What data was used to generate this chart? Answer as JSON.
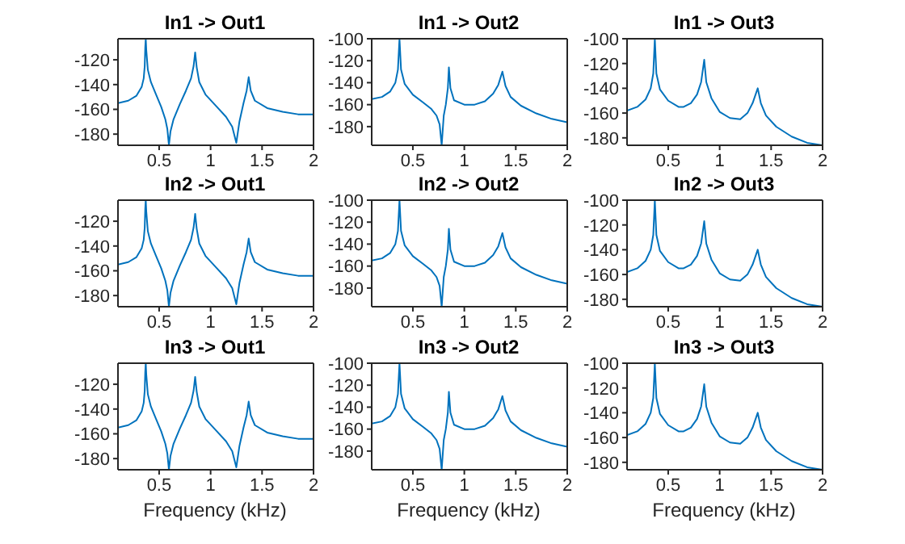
{
  "chart_data": [
    {
      "type": "line",
      "title": "In1 -> Out1",
      "color": "#0072bd",
      "x": [
        0.1,
        0.2,
        0.28,
        0.33,
        0.35,
        0.36,
        0.365,
        0.37,
        0.375,
        0.39,
        0.42,
        0.47,
        0.52,
        0.56,
        0.58,
        0.595,
        0.61,
        0.64,
        0.7,
        0.76,
        0.81,
        0.835,
        0.85,
        0.865,
        0.89,
        0.95,
        1.05,
        1.15,
        1.21,
        1.25,
        1.28,
        1.32,
        1.35,
        1.37,
        1.39,
        1.43,
        1.55,
        1.7,
        1.85,
        2
      ],
      "values": [
        -155,
        -153,
        -149,
        -142,
        -135,
        -125,
        -110,
        -103,
        -112,
        -128,
        -138,
        -148,
        -158,
        -168,
        -176,
        -189,
        -178,
        -168,
        -156,
        -145,
        -135,
        -125,
        -114,
        -126,
        -138,
        -148,
        -157,
        -166,
        -174,
        -187,
        -170,
        -155,
        -145,
        -134,
        -145,
        -153,
        -159,
        -162,
        -164,
        -164
      ],
      "xlim": [
        0.1,
        2
      ],
      "xticks": [
        0.5,
        1,
        1.5,
        2
      ],
      "ylim": [
        -189,
        -103
      ],
      "yticks": [
        -180,
        -160,
        -140,
        -120
      ]
    },
    {
      "type": "line",
      "title": "In1 -> Out2",
      "color": "#0072bd",
      "x": [
        0.1,
        0.2,
        0.28,
        0.33,
        0.355,
        0.37,
        0.385,
        0.42,
        0.5,
        0.6,
        0.68,
        0.73,
        0.76,
        0.78,
        0.8,
        0.82,
        0.84,
        0.85,
        0.865,
        0.9,
        1.0,
        1.1,
        1.2,
        1.28,
        1.33,
        1.37,
        1.4,
        1.45,
        1.55,
        1.7,
        1.85,
        2
      ],
      "values": [
        -155,
        -153,
        -148,
        -140,
        -128,
        -100,
        -128,
        -141,
        -151,
        -158,
        -164,
        -170,
        -178,
        -197,
        -170,
        -160,
        -145,
        -126,
        -145,
        -156,
        -160,
        -160,
        -157,
        -150,
        -142,
        -130,
        -143,
        -153,
        -161,
        -168,
        -173,
        -176
      ],
      "xlim": [
        0.1,
        2
      ],
      "xticks": [
        0.5,
        1,
        1.5,
        2
      ],
      "ylim": [
        -197,
        -100
      ],
      "yticks": [
        -180,
        -160,
        -140,
        -120,
        -100
      ]
    },
    {
      "type": "line",
      "title": "In1 -> Out3",
      "color": "#0072bd",
      "x": [
        0.1,
        0.2,
        0.28,
        0.33,
        0.355,
        0.37,
        0.385,
        0.42,
        0.5,
        0.6,
        0.65,
        0.72,
        0.78,
        0.82,
        0.85,
        0.87,
        0.92,
        1.0,
        1.1,
        1.2,
        1.27,
        1.32,
        1.37,
        1.4,
        1.45,
        1.55,
        1.7,
        1.85,
        2
      ],
      "values": [
        -158,
        -155,
        -149,
        -140,
        -128,
        -100,
        -128,
        -141,
        -150,
        -155,
        -155,
        -152,
        -145,
        -135,
        -117,
        -135,
        -148,
        -159,
        -164,
        -165,
        -160,
        -152,
        -140,
        -152,
        -162,
        -171,
        -179,
        -184,
        -186
      ],
      "xlim": [
        0.1,
        2
      ],
      "xticks": [
        0.5,
        1,
        1.5,
        2
      ],
      "ylim": [
        -186,
        -100
      ],
      "yticks": [
        -180,
        -160,
        -140,
        -120,
        -100
      ]
    },
    {
      "type": "line",
      "title": "In2 -> Out1",
      "color": "#0072bd",
      "x": [
        0.1,
        0.2,
        0.28,
        0.33,
        0.35,
        0.36,
        0.365,
        0.37,
        0.375,
        0.39,
        0.42,
        0.47,
        0.52,
        0.56,
        0.58,
        0.595,
        0.61,
        0.64,
        0.7,
        0.76,
        0.81,
        0.835,
        0.85,
        0.865,
        0.89,
        0.95,
        1.05,
        1.15,
        1.21,
        1.25,
        1.28,
        1.32,
        1.35,
        1.37,
        1.39,
        1.43,
        1.55,
        1.7,
        1.85,
        2
      ],
      "values": [
        -155,
        -153,
        -149,
        -142,
        -135,
        -125,
        -110,
        -103,
        -112,
        -128,
        -138,
        -148,
        -158,
        -168,
        -176,
        -189,
        -178,
        -168,
        -156,
        -145,
        -135,
        -125,
        -114,
        -126,
        -138,
        -148,
        -157,
        -166,
        -174,
        -187,
        -170,
        -155,
        -145,
        -134,
        -145,
        -153,
        -159,
        -162,
        -164,
        -164
      ],
      "xlim": [
        0.1,
        2
      ],
      "xticks": [
        0.5,
        1,
        1.5,
        2
      ],
      "ylim": [
        -189,
        -103
      ],
      "yticks": [
        -180,
        -160,
        -140,
        -120
      ]
    },
    {
      "type": "line",
      "title": "In2 -> Out2",
      "color": "#0072bd",
      "x": [
        0.1,
        0.2,
        0.28,
        0.33,
        0.355,
        0.37,
        0.385,
        0.42,
        0.5,
        0.6,
        0.68,
        0.73,
        0.76,
        0.78,
        0.8,
        0.82,
        0.84,
        0.85,
        0.865,
        0.9,
        1.0,
        1.1,
        1.2,
        1.28,
        1.33,
        1.37,
        1.4,
        1.45,
        1.55,
        1.7,
        1.85,
        2
      ],
      "values": [
        -155,
        -153,
        -148,
        -140,
        -128,
        -100,
        -128,
        -141,
        -151,
        -158,
        -164,
        -170,
        -178,
        -197,
        -170,
        -160,
        -145,
        -126,
        -145,
        -156,
        -160,
        -160,
        -157,
        -150,
        -142,
        -130,
        -143,
        -153,
        -161,
        -168,
        -173,
        -176
      ],
      "xlim": [
        0.1,
        2
      ],
      "xticks": [
        0.5,
        1,
        1.5,
        2
      ],
      "ylim": [
        -197,
        -100
      ],
      "yticks": [
        -180,
        -160,
        -140,
        -120,
        -100
      ]
    },
    {
      "type": "line",
      "title": "In2 -> Out3",
      "color": "#0072bd",
      "x": [
        0.1,
        0.2,
        0.28,
        0.33,
        0.355,
        0.37,
        0.385,
        0.42,
        0.5,
        0.6,
        0.65,
        0.72,
        0.78,
        0.82,
        0.85,
        0.87,
        0.92,
        1.0,
        1.1,
        1.2,
        1.27,
        1.32,
        1.37,
        1.4,
        1.45,
        1.55,
        1.7,
        1.85,
        2
      ],
      "values": [
        -158,
        -155,
        -149,
        -140,
        -128,
        -100,
        -128,
        -141,
        -150,
        -155,
        -155,
        -152,
        -145,
        -135,
        -117,
        -135,
        -148,
        -159,
        -164,
        -165,
        -160,
        -152,
        -140,
        -152,
        -162,
        -171,
        -179,
        -184,
        -186
      ],
      "xlim": [
        0.1,
        2
      ],
      "xticks": [
        0.5,
        1,
        1.5,
        2
      ],
      "ylim": [
        -186,
        -100
      ],
      "yticks": [
        -180,
        -160,
        -140,
        -120,
        -100
      ]
    },
    {
      "type": "line",
      "title": "In3 -> Out1",
      "xlabel": "Frequency (kHz)",
      "color": "#0072bd",
      "x": [
        0.1,
        0.2,
        0.28,
        0.33,
        0.35,
        0.36,
        0.365,
        0.37,
        0.375,
        0.39,
        0.42,
        0.47,
        0.52,
        0.56,
        0.58,
        0.595,
        0.61,
        0.64,
        0.7,
        0.76,
        0.81,
        0.835,
        0.85,
        0.865,
        0.89,
        0.95,
        1.05,
        1.15,
        1.21,
        1.25,
        1.28,
        1.32,
        1.35,
        1.37,
        1.39,
        1.43,
        1.55,
        1.7,
        1.85,
        2
      ],
      "values": [
        -155,
        -153,
        -149,
        -142,
        -135,
        -125,
        -110,
        -103,
        -112,
        -128,
        -138,
        -148,
        -158,
        -168,
        -176,
        -189,
        -178,
        -168,
        -156,
        -145,
        -135,
        -125,
        -114,
        -126,
        -138,
        -148,
        -157,
        -166,
        -174,
        -187,
        -170,
        -155,
        -145,
        -134,
        -145,
        -153,
        -159,
        -162,
        -164,
        -164
      ],
      "xlim": [
        0.1,
        2
      ],
      "xticks": [
        0.5,
        1,
        1.5,
        2
      ],
      "ylim": [
        -189,
        -103
      ],
      "yticks": [
        -180,
        -160,
        -140,
        -120
      ]
    },
    {
      "type": "line",
      "title": "In3 -> Out2",
      "xlabel": "Frequency (kHz)",
      "color": "#0072bd",
      "x": [
        0.1,
        0.2,
        0.28,
        0.33,
        0.355,
        0.37,
        0.385,
        0.42,
        0.5,
        0.6,
        0.68,
        0.73,
        0.76,
        0.78,
        0.8,
        0.82,
        0.84,
        0.85,
        0.865,
        0.9,
        1.0,
        1.1,
        1.2,
        1.28,
        1.33,
        1.37,
        1.4,
        1.45,
        1.55,
        1.7,
        1.85,
        2
      ],
      "values": [
        -155,
        -153,
        -148,
        -140,
        -128,
        -100,
        -128,
        -141,
        -151,
        -158,
        -164,
        -170,
        -178,
        -197,
        -170,
        -160,
        -145,
        -126,
        -145,
        -156,
        -160,
        -160,
        -157,
        -150,
        -142,
        -130,
        -143,
        -153,
        -161,
        -168,
        -173,
        -176
      ],
      "xlim": [
        0.1,
        2
      ],
      "xticks": [
        0.5,
        1,
        1.5,
        2
      ],
      "ylim": [
        -197,
        -100
      ],
      "yticks": [
        -180,
        -160,
        -140,
        -120,
        -100
      ]
    },
    {
      "type": "line",
      "title": "In3 -> Out3",
      "xlabel": "Frequency (kHz)",
      "color": "#0072bd",
      "x": [
        0.1,
        0.2,
        0.28,
        0.33,
        0.355,
        0.37,
        0.385,
        0.42,
        0.5,
        0.6,
        0.65,
        0.72,
        0.78,
        0.82,
        0.85,
        0.87,
        0.92,
        1.0,
        1.1,
        1.2,
        1.27,
        1.32,
        1.37,
        1.4,
        1.45,
        1.55,
        1.7,
        1.85,
        2
      ],
      "values": [
        -158,
        -155,
        -149,
        -140,
        -128,
        -100,
        -128,
        -141,
        -150,
        -155,
        -155,
        -152,
        -145,
        -135,
        -117,
        -135,
        -148,
        -159,
        -164,
        -165,
        -160,
        -152,
        -140,
        -152,
        -162,
        -171,
        -179,
        -184,
        -186
      ],
      "xlim": [
        0.1,
        2
      ],
      "xticks": [
        0.5,
        1,
        1.5,
        2
      ],
      "ylim": [
        -186,
        -100
      ],
      "yticks": [
        -180,
        -160,
        -140,
        -120,
        -100
      ]
    }
  ]
}
